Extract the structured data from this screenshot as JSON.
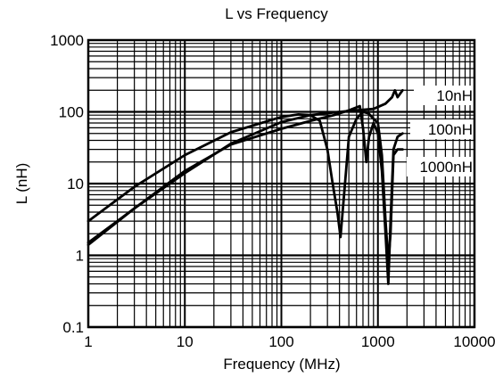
{
  "chart_data": {
    "type": "line",
    "title": "L vs Frequency",
    "xlabel": "Frequency (MHz)",
    "ylabel": "L (nH)",
    "x_scale": "log",
    "y_scale": "log",
    "xlim": [
      1,
      10000
    ],
    "ylim": [
      0.1,
      1000
    ],
    "x_ticks": [
      1,
      10,
      100,
      1000,
      10000
    ],
    "x_tick_labels": [
      "1",
      "10",
      "100",
      "1000",
      "10000"
    ],
    "y_ticks": [
      0.1,
      1,
      10,
      100,
      1000
    ],
    "y_tick_labels": [
      "0.1",
      "1",
      "10",
      "100",
      "1000"
    ],
    "grid": true,
    "series": [
      {
        "name": "10nH",
        "points": [
          [
            1,
            1.5
          ],
          [
            3,
            4.5
          ],
          [
            10,
            14
          ],
          [
            30,
            36
          ],
          [
            100,
            72
          ],
          [
            200,
            90
          ],
          [
            400,
            100
          ],
          [
            600,
            105
          ],
          [
            900,
            110
          ],
          [
            1200,
            130
          ],
          [
            1400,
            160
          ],
          [
            1500,
            200
          ],
          [
            1600,
            160
          ],
          [
            1800,
            200
          ]
        ]
      },
      {
        "name": "100nH",
        "points": [
          [
            1,
            1.4
          ],
          [
            3,
            4.5
          ],
          [
            10,
            15
          ],
          [
            30,
            35
          ],
          [
            100,
            58
          ],
          [
            200,
            75
          ],
          [
            350,
            90
          ],
          [
            500,
            105
          ],
          [
            650,
            120
          ],
          [
            700,
            60
          ],
          [
            760,
            20
          ],
          [
            810,
            45
          ],
          [
            900,
            70
          ],
          [
            1000,
            50
          ],
          [
            1100,
            15
          ],
          [
            1200,
            2
          ],
          [
            1280,
            0.4
          ],
          [
            1350,
            3
          ],
          [
            1450,
            30
          ],
          [
            1600,
            45
          ],
          [
            1800,
            50
          ]
        ]
      },
      {
        "name": "1000nH",
        "points": [
          [
            1,
            3
          ],
          [
            3,
            9
          ],
          [
            10,
            25
          ],
          [
            30,
            52
          ],
          [
            100,
            85
          ],
          [
            150,
            92
          ],
          [
            200,
            90
          ],
          [
            250,
            75
          ],
          [
            300,
            30
          ],
          [
            340,
            10
          ],
          [
            380,
            4
          ],
          [
            410,
            1.8
          ],
          [
            450,
            8
          ],
          [
            500,
            45
          ],
          [
            600,
            80
          ],
          [
            700,
            100
          ],
          [
            800,
            95
          ],
          [
            900,
            80
          ],
          [
            1000,
            70
          ],
          [
            1100,
            25
          ],
          [
            1200,
            3
          ],
          [
            1280,
            0.8
          ],
          [
            1350,
            2
          ],
          [
            1450,
            25
          ],
          [
            1600,
            30
          ],
          [
            1800,
            30
          ]
        ]
      }
    ],
    "legend": "inline-right"
  }
}
